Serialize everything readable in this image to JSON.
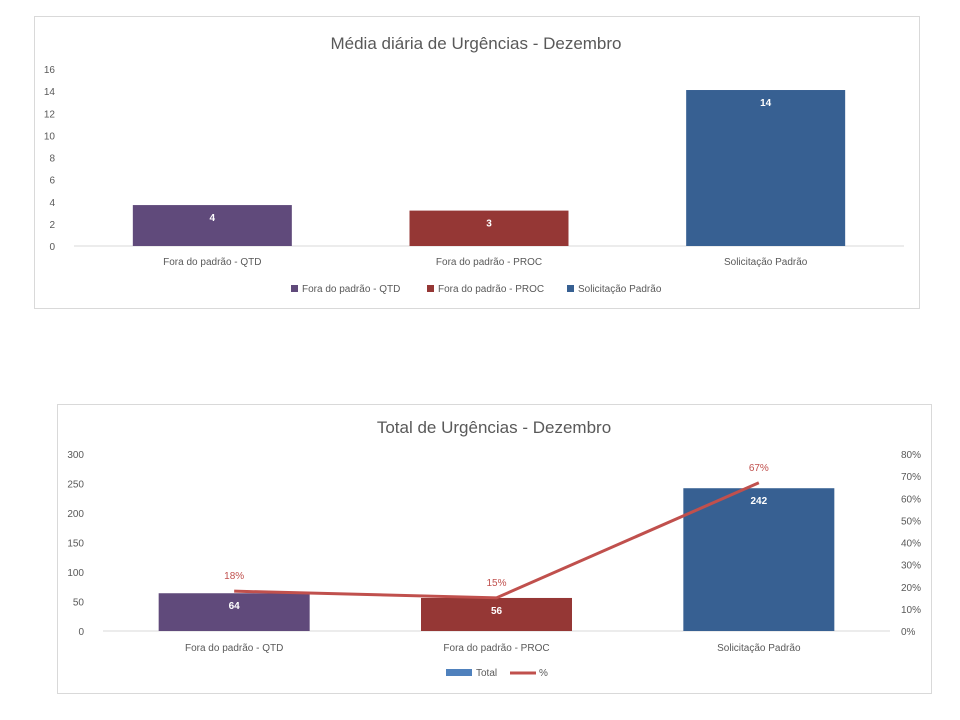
{
  "chart_data": [
    {
      "type": "bar",
      "title": "Média diária de Urgências - Dezembro",
      "categories": [
        "Fora do padrão - QTD",
        "Fora do padrão - PROC",
        "Solicitação Padrão"
      ],
      "values": [
        3.7,
        3.2,
        14.1
      ],
      "data_labels": [
        "4",
        "3",
        "14"
      ],
      "colors": [
        "#604a7b",
        "#953735",
        "#376092"
      ],
      "ylim": [
        0,
        16
      ],
      "yticks": [
        "0",
        "2",
        "4",
        "6",
        "8",
        "10",
        "12",
        "14",
        "16"
      ],
      "legend": [
        "Fora do padrão - QTD",
        "Fora do padrão - PROC",
        "Solicitação Padrão"
      ],
      "legend_position": "bottom",
      "grid": false
    },
    {
      "type": "bar",
      "title": "Total de Urgências - Dezembro",
      "categories": [
        "Fora do padrão - QTD",
        "Fora do padrão - PROC",
        "Solicitação Padrão"
      ],
      "series": [
        {
          "name": "Total",
          "type": "bar",
          "values": [
            64,
            56,
            242
          ],
          "data_labels": [
            "64",
            "56",
            "242"
          ],
          "colors": [
            "#604a7b",
            "#953735",
            "#376092"
          ]
        },
        {
          "name": "%",
          "type": "line",
          "axis": "secondary",
          "values": [
            0.18,
            0.15,
            0.67
          ],
          "data_labels": [
            "18%",
            "15%",
            "67%"
          ],
          "color": "#c0504d"
        }
      ],
      "ylim": [
        0,
        300
      ],
      "yticks": [
        "0",
        "50",
        "100",
        "150",
        "200",
        "250",
        "300"
      ],
      "y2lim": [
        0,
        0.8
      ],
      "y2ticks": [
        "0%",
        "10%",
        "20%",
        "30%",
        "40%",
        "50%",
        "60%",
        "70%",
        "80%"
      ],
      "legend": [
        "Total",
        "%"
      ],
      "legend_colors": [
        "#4f81bd",
        "#c0504d"
      ],
      "legend_position": "bottom",
      "grid": false
    }
  ]
}
